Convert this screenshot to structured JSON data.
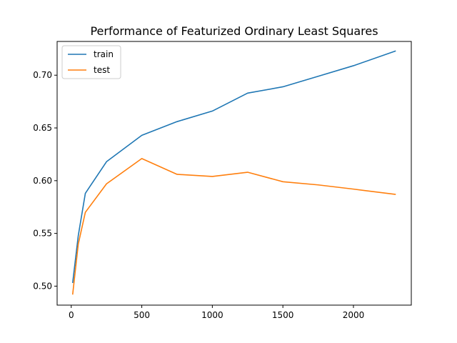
{
  "chart_data": {
    "type": "line",
    "title": "Performance of Featurized Ordinary Least Squares",
    "xlabel": "",
    "ylabel": "",
    "xlim": [
      -100,
      2410
    ],
    "ylim": [
      0.482,
      0.732
    ],
    "x_ticks": [
      0,
      500,
      1000,
      1500,
      2000
    ],
    "x_tick_labels": [
      "0",
      "500",
      "1000",
      "1500",
      "2000"
    ],
    "y_ticks": [
      0.5,
      0.55,
      0.6,
      0.65,
      0.7
    ],
    "y_tick_labels": [
      "0.50",
      "0.55",
      "0.60",
      "0.65",
      "0.70"
    ],
    "grid": false,
    "legend_position": "top-left",
    "series": [
      {
        "name": "train",
        "color": "#1f77b4",
        "x": [
          10,
          50,
          100,
          250,
          500,
          750,
          1000,
          1250,
          1500,
          1750,
          2000,
          2300
        ],
        "y": [
          0.503,
          0.548,
          0.588,
          0.618,
          0.643,
          0.656,
          0.666,
          0.683,
          0.689,
          0.699,
          0.709,
          0.723
        ]
      },
      {
        "name": "test",
        "color": "#ff7f0e",
        "x": [
          10,
          50,
          100,
          250,
          500,
          750,
          1000,
          1250,
          1500,
          1750,
          2000,
          2300
        ],
        "y": [
          0.492,
          0.54,
          0.57,
          0.597,
          0.621,
          0.606,
          0.604,
          0.608,
          0.599,
          0.596,
          0.592,
          0.587
        ]
      }
    ]
  }
}
